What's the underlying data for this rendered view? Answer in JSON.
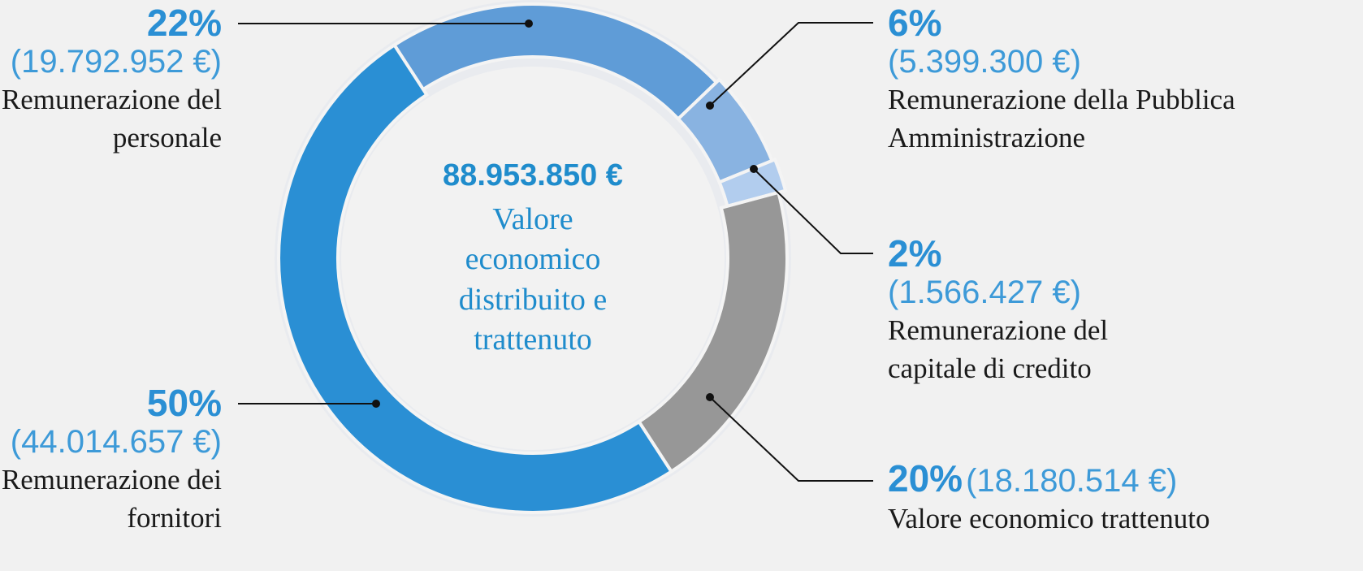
{
  "chart_data": {
    "type": "pie",
    "categories": [
      "Remunerazione del personale",
      "Remunerazione della Pubblica Amministrazione",
      "Remunerazione del capitale di credito",
      "Valore economico trattenuto",
      "Remunerazione dei fornitori"
    ],
    "values": [
      22,
      6,
      2,
      20,
      50
    ],
    "value_labels": [
      "22%",
      "6%",
      "2%",
      "20%",
      "50%"
    ],
    "amounts": [
      "(19.792.952 €)",
      "(5.399.300 €)",
      "(1.566.427 €)",
      "(18.180.514 €)",
      "(44.014.657 €)"
    ],
    "colors": [
      "#5f9cd7",
      "#89b3e1",
      "#b2cdee",
      "#979797",
      "#2a8fd4"
    ],
    "center_value": "88.953.850 €",
    "center_label": "Valore economico distribuito e trattenuto"
  }
}
